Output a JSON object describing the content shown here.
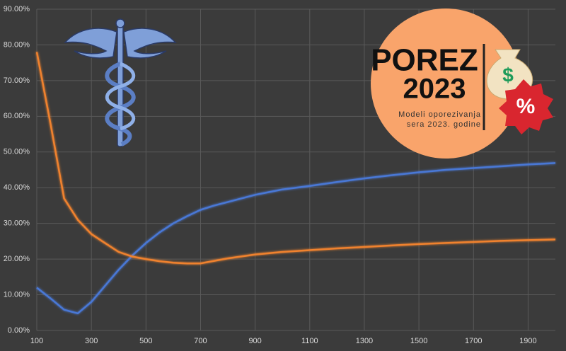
{
  "chart_data": {
    "type": "line",
    "x": [
      100,
      150,
      200,
      250,
      300,
      350,
      400,
      450,
      500,
      550,
      600,
      650,
      700,
      750,
      800,
      900,
      1000,
      1100,
      1200,
      1300,
      1400,
      1500,
      1600,
      1700,
      1800,
      1900,
      2000
    ],
    "series": [
      {
        "color": "#4a78d6",
        "values": [
          12,
          9,
          5.8,
          4.8,
          8,
          12.5,
          17,
          21,
          24.5,
          27.5,
          30,
          32,
          33.8,
          35,
          36,
          38,
          39.5,
          40.5,
          41.6,
          42.6,
          43.5,
          44.3,
          45,
          45.5,
          46,
          46.5,
          46.9
        ]
      },
      {
        "color": "#f0822e",
        "values": [
          78,
          58,
          37,
          31,
          27,
          24.5,
          22,
          20.7,
          20,
          19.4,
          19,
          18.8,
          18.8,
          19.5,
          20.2,
          21.3,
          22,
          22.5,
          23,
          23.4,
          23.8,
          24.2,
          24.5,
          24.8,
          25.1,
          25.3,
          25.5
        ]
      }
    ],
    "xlim": [
      100,
      2000
    ],
    "xticks": [
      100,
      300,
      500,
      700,
      900,
      1100,
      1300,
      1500,
      1700,
      1900
    ],
    "ylim": [
      0,
      90
    ],
    "yticks": [
      {
        "value": 0,
        "label": "0.00%"
      },
      {
        "value": 10,
        "label": "10.00%"
      },
      {
        "value": 20,
        "label": "20.00%"
      },
      {
        "value": 30,
        "label": "30.00%"
      },
      {
        "value": 40,
        "label": "40.00%"
      },
      {
        "value": 50,
        "label": "50.00%"
      },
      {
        "value": 60,
        "label": "60.00%"
      },
      {
        "value": 70,
        "label": "70.00%"
      },
      {
        "value": 80,
        "label": "80.00%"
      },
      {
        "value": 90,
        "label": "90.00%"
      }
    ],
    "grid": true
  },
  "badge": {
    "title_line1": "POREZ",
    "title_line2": "2023",
    "subtitle_line1": "Modeli oporezivanja",
    "subtitle_line2": "sera 2023. godine",
    "symbol": "%",
    "bag_symbol": "$"
  }
}
